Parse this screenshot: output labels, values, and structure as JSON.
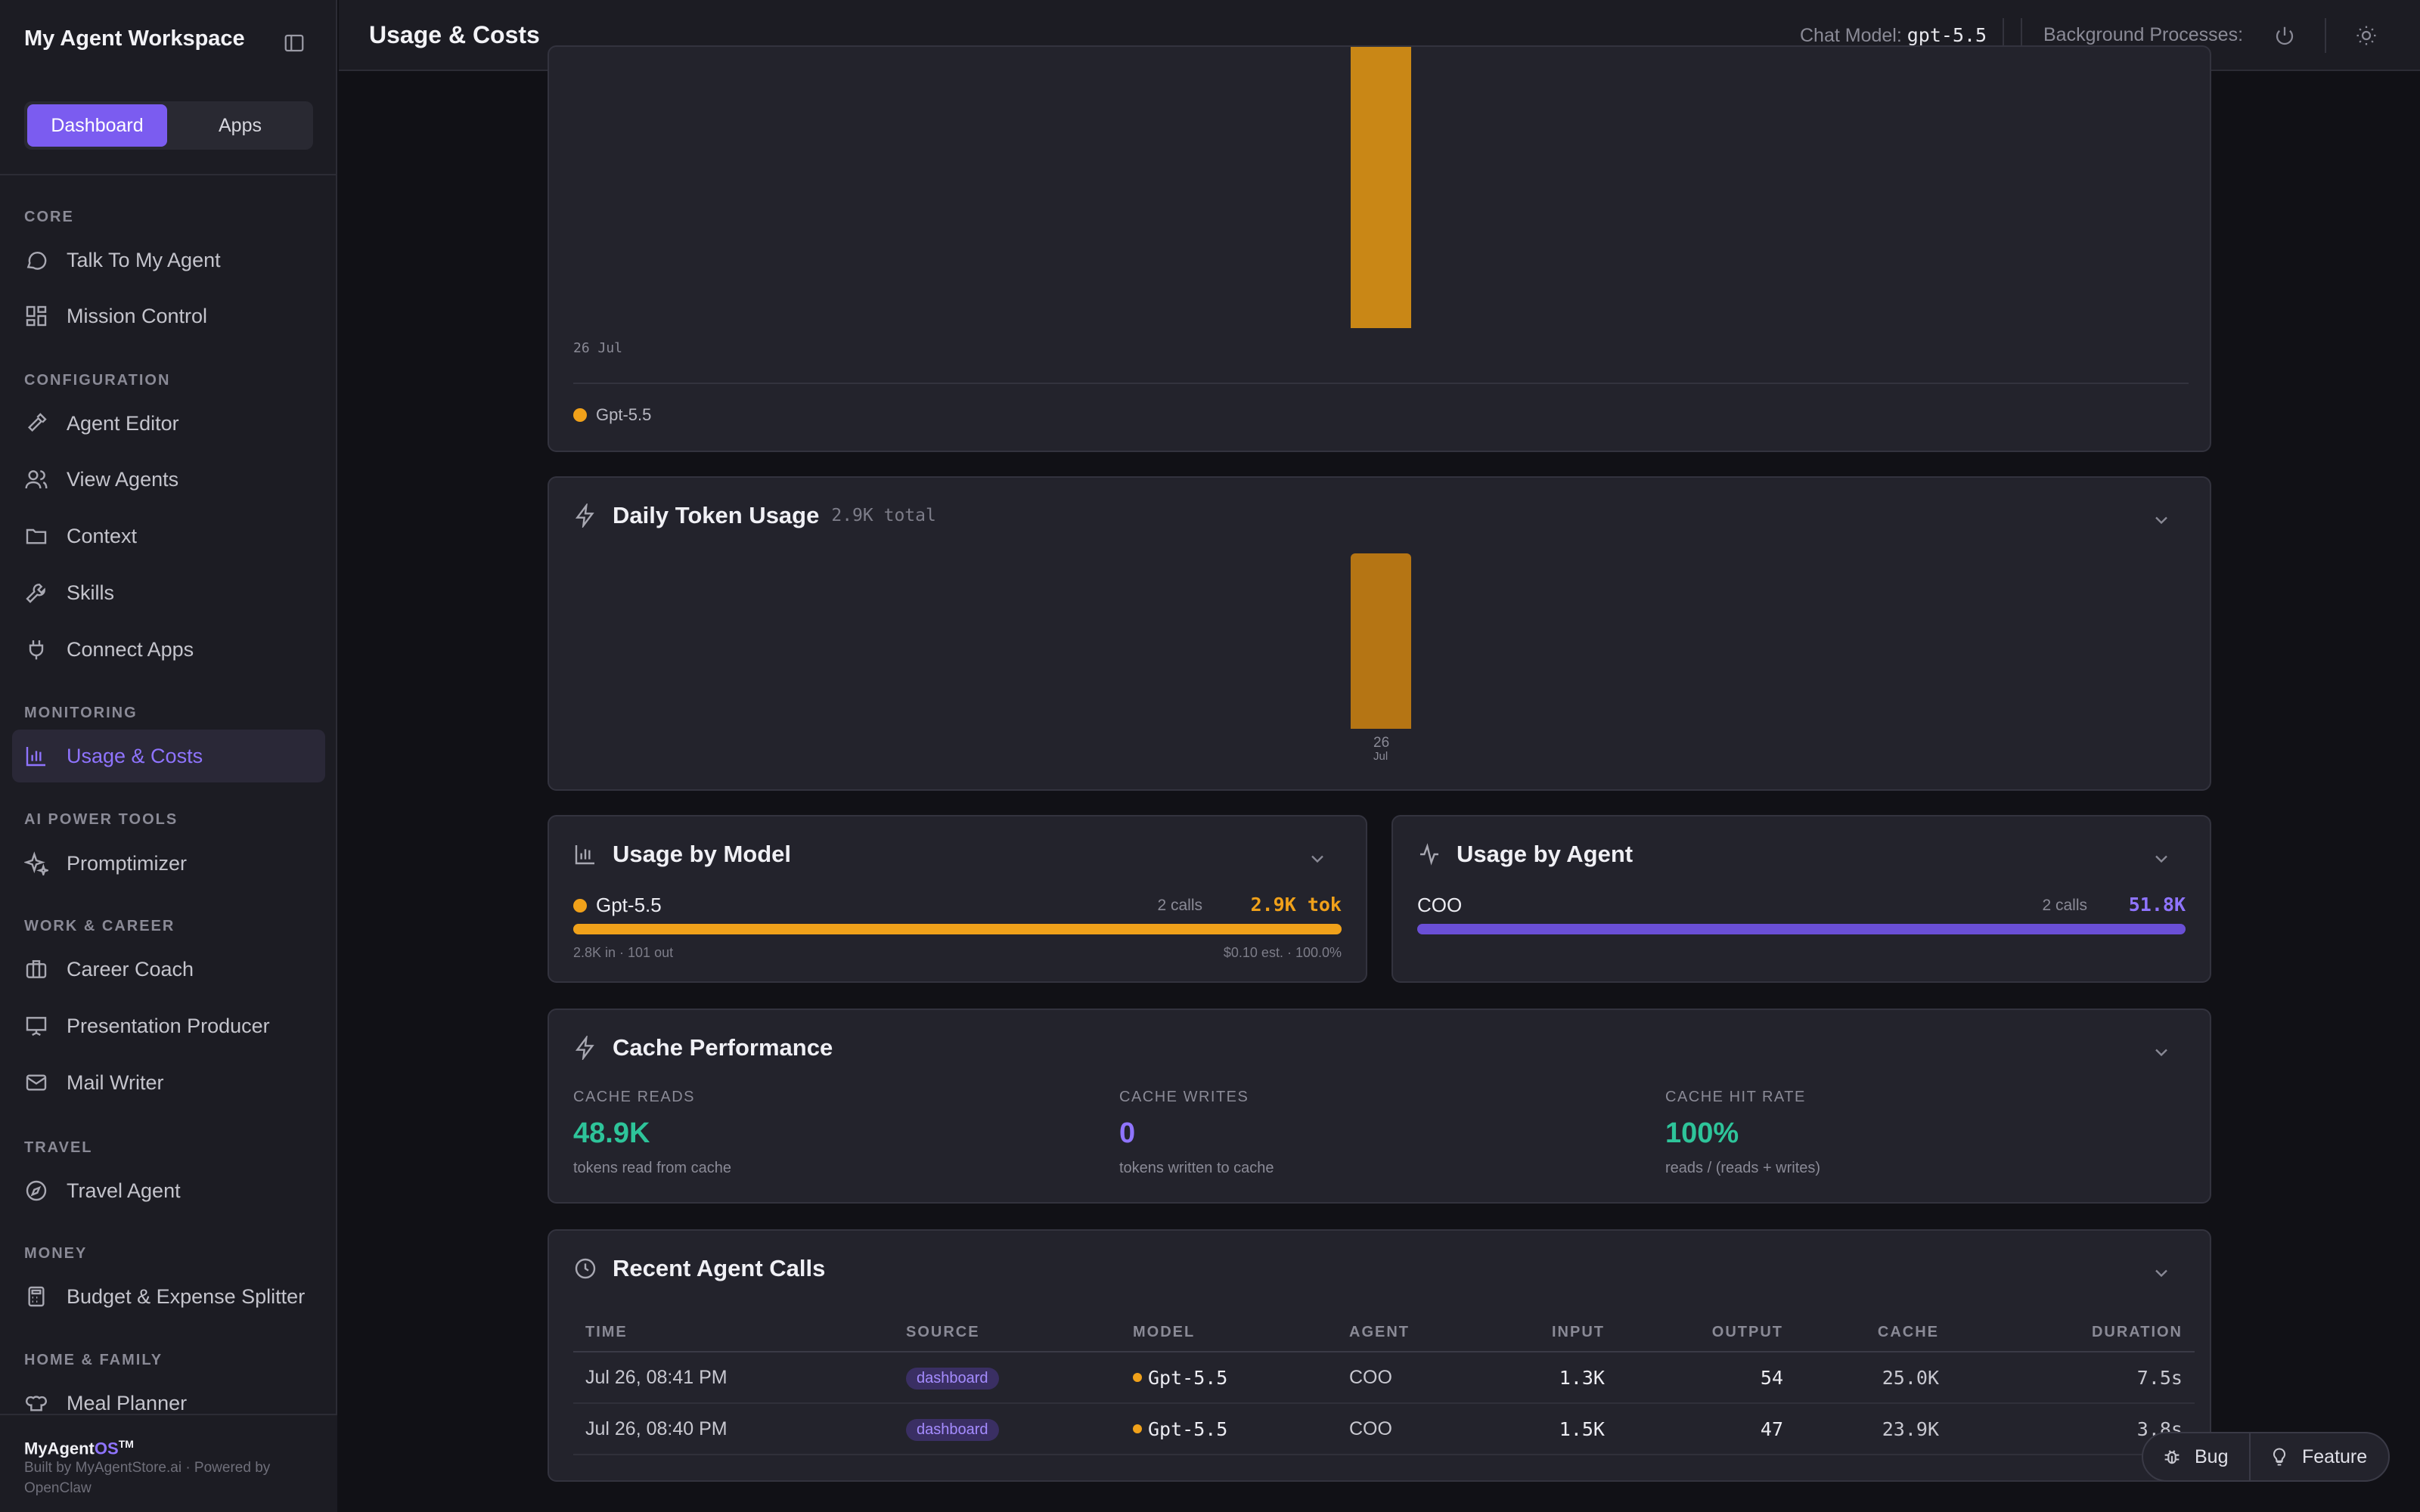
{
  "sidebar": {
    "workspace_title": "My Agent Workspace",
    "tabs": [
      "Dashboard",
      "Apps"
    ],
    "sections": {
      "core": "CORE",
      "configuration": "CONFIGURATION",
      "monitoring": "MONITORING",
      "ai_power_tools": "AI POWER TOOLS",
      "work_career": "WORK & CAREER",
      "travel": "TRAVEL",
      "money": "MONEY",
      "home_family": "HOME & FAMILY"
    },
    "items": {
      "talk": "Talk To My Agent",
      "mission": "Mission Control",
      "editor": "Agent Editor",
      "view_agents": "View Agents",
      "context": "Context",
      "skills": "Skills",
      "connect": "Connect Apps",
      "usage": "Usage & Costs",
      "promptimizer": "Promptimizer",
      "career": "Career Coach",
      "presentation": "Presentation Producer",
      "mail": "Mail Writer",
      "travel_agent": "Travel Agent",
      "budget": "Budget & Expense Splitter",
      "meal": "Meal Planner"
    },
    "footer": {
      "brand_main": "MyAgent",
      "brand_os": "OS",
      "brand_tm": "TM",
      "built_by": "Built by MyAgentStore.ai · Powered by OpenClaw"
    }
  },
  "header": {
    "title": "Usage & Costs",
    "chat_model_label": "Chat Model:",
    "chat_model_value": "gpt-5.5",
    "background_label": "Background Processes:"
  },
  "cost_chart": {
    "x_label": "26 Jul",
    "legend": "Gpt-5.5"
  },
  "daily_tokens": {
    "title": "Daily Token Usage",
    "total": "2.9K total",
    "tick_day": "26",
    "tick_month": "Jul"
  },
  "usage_by_model": {
    "title": "Usage by Model",
    "name": "Gpt-5.5",
    "calls": "2 calls",
    "tokens": "2.9K tok",
    "in_out": "2.8K in · 101 out",
    "est": "$0.10 est. · 100.0%",
    "share": 1.0
  },
  "usage_by_agent": {
    "title": "Usage by Agent",
    "name": "COO",
    "calls": "2 calls",
    "tokens": "51.8K",
    "share": 1.0
  },
  "cache": {
    "title": "Cache Performance",
    "reads_label": "CACHE READS",
    "reads_value": "48.9K",
    "reads_note": "tokens read from cache",
    "writes_label": "CACHE WRITES",
    "writes_value": "0",
    "writes_note": "tokens written to cache",
    "hit_label": "CACHE HIT RATE",
    "hit_value": "100%",
    "hit_note": "reads / (reads + writes)"
  },
  "recent_calls": {
    "title": "Recent Agent Calls",
    "columns": [
      "TIME",
      "SOURCE",
      "MODEL",
      "AGENT",
      "INPUT",
      "OUTPUT",
      "CACHE",
      "DURATION"
    ],
    "rows": [
      [
        "Jul 26, 08:41 PM",
        "dashboard",
        "Gpt-5.5",
        "COO",
        "1.3K",
        "54",
        "25.0K",
        "7.5s"
      ],
      [
        "Jul 26, 08:40 PM",
        "dashboard",
        "Gpt-5.5",
        "COO",
        "1.5K",
        "47",
        "23.9K",
        "3.8s"
      ]
    ]
  },
  "feedback": {
    "bug": "Bug",
    "feature": "Feature"
  },
  "colors": {
    "accent": "#7b5cf0",
    "orange": "#f0a11a",
    "green": "#2ec49a"
  },
  "chart_data": [
    {
      "type": "bar",
      "categories": [
        "26 Jul"
      ],
      "series": [
        {
          "name": "Gpt-5.5",
          "values": [
            null
          ]
        }
      ]
    },
    {
      "type": "bar",
      "title": "Daily Token Usage",
      "categories": [
        "26 Jul"
      ],
      "values": [
        2900
      ]
    }
  ]
}
